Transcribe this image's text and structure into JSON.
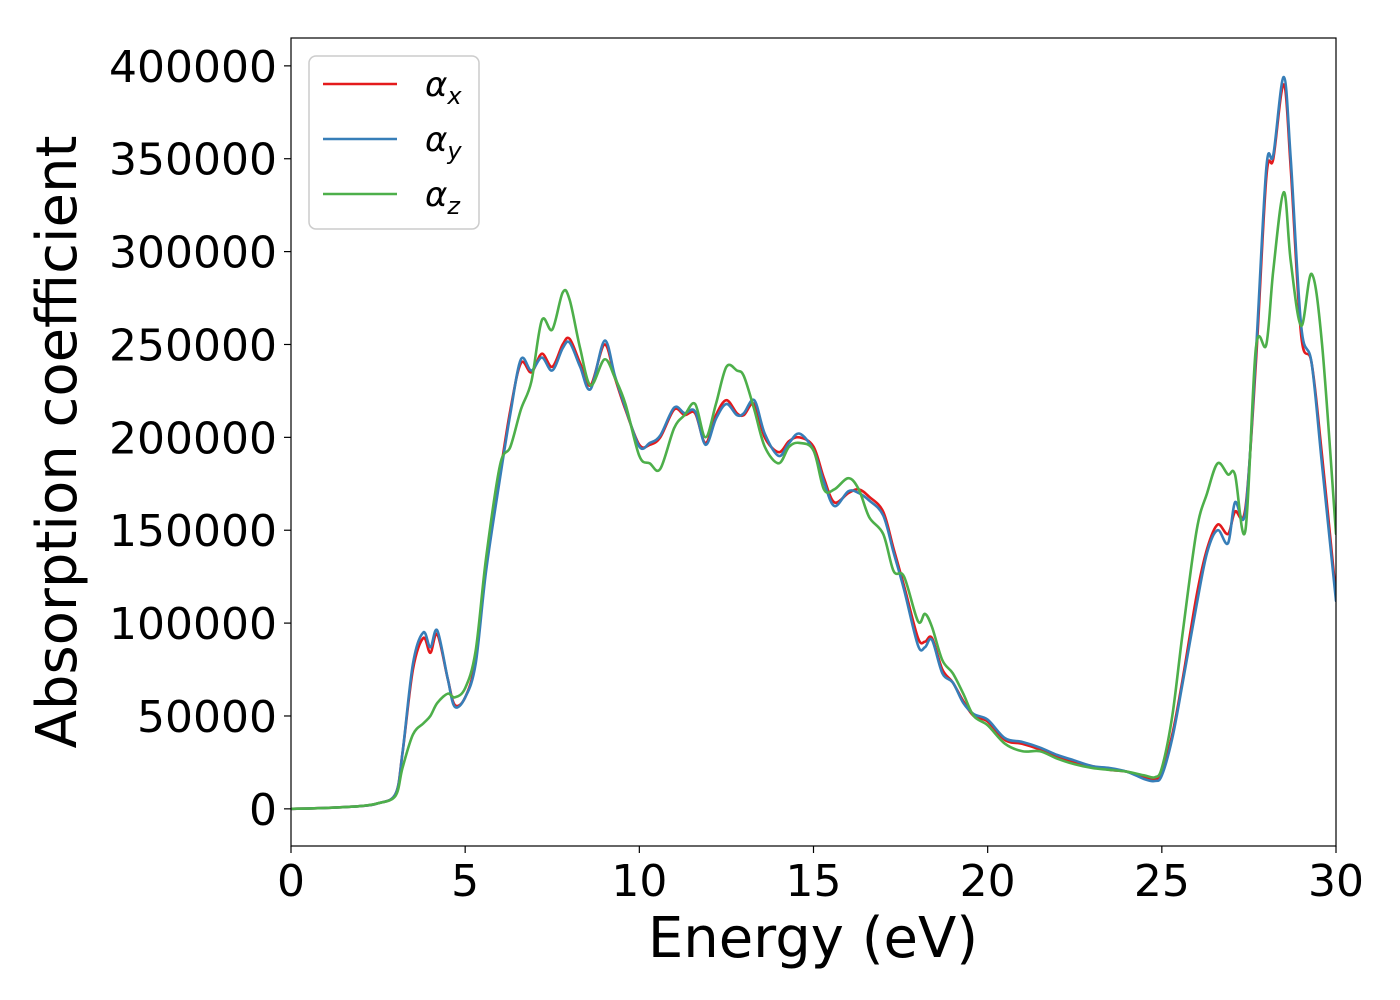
{
  "chart_data": {
    "type": "line",
    "title": "",
    "xlabel": "Energy (eV)",
    "ylabel": "Absorption coefficient",
    "xlim": [
      0,
      30
    ],
    "ylim": [
      -20000,
      415000
    ],
    "xticks": [
      0,
      5,
      10,
      15,
      20,
      25,
      30
    ],
    "yticks": [
      0,
      50000,
      100000,
      150000,
      200000,
      250000,
      300000,
      350000,
      400000
    ],
    "grid": false,
    "legend_position": "top-left",
    "colors": {
      "alpha_x": "#e41a1c",
      "alpha_y": "#377eb8",
      "alpha_z": "#4daf4a"
    },
    "series": [
      {
        "name": "α_x",
        "label_main": "α",
        "label_sub": "x",
        "color": "#e41a1c",
        "x": [
          0,
          1,
          2,
          2.5,
          3,
          3.2,
          3.5,
          3.8,
          4.0,
          4.2,
          4.5,
          4.7,
          5.0,
          5.3,
          5.6,
          6.0,
          6.3,
          6.6,
          6.9,
          7.2,
          7.5,
          7.8,
          8.0,
          8.3,
          8.6,
          9.0,
          9.3,
          9.6,
          10.0,
          10.3,
          10.6,
          11.0,
          11.3,
          11.6,
          11.9,
          12.2,
          12.5,
          12.8,
          13.0,
          13.3,
          13.6,
          14.0,
          14.3,
          14.6,
          15.0,
          15.3,
          15.6,
          16.0,
          16.3,
          16.6,
          17.0,
          17.3,
          17.6,
          18.0,
          18.2,
          18.4,
          18.7,
          19.0,
          19.3,
          19.6,
          20.0,
          20.5,
          21.0,
          21.5,
          22.0,
          22.5,
          23.0,
          23.5,
          24.0,
          24.5,
          24.8,
          25.0,
          25.3,
          25.6,
          26.0,
          26.3,
          26.6,
          26.9,
          27.1,
          27.4,
          27.7,
          28.0,
          28.2,
          28.5,
          28.7,
          29.0,
          29.3,
          29.6,
          30.0
        ],
        "values": [
          0,
          500,
          1500,
          3000,
          8000,
          30000,
          75000,
          92000,
          84000,
          94000,
          70000,
          56000,
          60000,
          80000,
          130000,
          180000,
          215000,
          240000,
          235000,
          245000,
          238000,
          250000,
          253000,
          240000,
          228000,
          250000,
          232000,
          215000,
          196000,
          196000,
          200000,
          215000,
          212000,
          213000,
          197000,
          212000,
          220000,
          213000,
          212000,
          218000,
          200000,
          192000,
          198000,
          200000,
          195000,
          178000,
          165000,
          170000,
          172000,
          168000,
          160000,
          140000,
          120000,
          92000,
          90000,
          92000,
          75000,
          68000,
          58000,
          50000,
          47000,
          37000,
          35000,
          32000,
          28000,
          25000,
          23000,
          21000,
          20000,
          17000,
          16000,
          20000,
          40000,
          70000,
          115000,
          140000,
          153000,
          148000,
          160000,
          162000,
          240000,
          340000,
          350000,
          390000,
          345000,
          255000,
          240000,
          190000,
          115000
        ]
      },
      {
        "name": "α_y",
        "label_main": "α",
        "label_sub": "y",
        "color": "#377eb8",
        "x": [
          0,
          1,
          2,
          2.5,
          3,
          3.2,
          3.5,
          3.8,
          4.0,
          4.2,
          4.5,
          4.7,
          5.0,
          5.3,
          5.6,
          6.0,
          6.3,
          6.6,
          6.9,
          7.2,
          7.5,
          7.8,
          8.0,
          8.3,
          8.6,
          9.0,
          9.3,
          9.6,
          10.0,
          10.3,
          10.6,
          11.0,
          11.3,
          11.6,
          11.9,
          12.2,
          12.5,
          12.8,
          13.0,
          13.3,
          13.6,
          14.0,
          14.3,
          14.6,
          15.0,
          15.3,
          15.6,
          16.0,
          16.3,
          16.6,
          17.0,
          17.3,
          17.6,
          18.0,
          18.2,
          18.4,
          18.7,
          19.0,
          19.3,
          19.6,
          20.0,
          20.5,
          21.0,
          21.5,
          22.0,
          22.5,
          23.0,
          23.5,
          24.0,
          24.5,
          24.8,
          25.0,
          25.3,
          25.6,
          26.0,
          26.3,
          26.6,
          26.9,
          27.1,
          27.4,
          27.7,
          28.0,
          28.2,
          28.5,
          28.7,
          29.0,
          29.3,
          29.6,
          30.0
        ],
        "values": [
          0,
          500,
          1500,
          3000,
          8000,
          30000,
          78000,
          95000,
          87000,
          96000,
          70000,
          55000,
          60000,
          78000,
          128000,
          178000,
          213000,
          242000,
          236000,
          243000,
          236000,
          248000,
          251000,
          238000,
          226000,
          252000,
          233000,
          216000,
          195000,
          197000,
          201000,
          216000,
          213000,
          214000,
          196000,
          210000,
          218000,
          212000,
          213000,
          220000,
          202000,
          190000,
          197000,
          202000,
          193000,
          176000,
          163000,
          171000,
          170000,
          166000,
          158000,
          138000,
          118000,
          88000,
          87000,
          91000,
          73000,
          68000,
          57000,
          51000,
          48000,
          38000,
          36000,
          33000,
          29000,
          26000,
          23000,
          22000,
          20000,
          16000,
          15000,
          18000,
          38000,
          68000,
          110000,
          138000,
          150000,
          143000,
          165000,
          160000,
          245000,
          345000,
          352000,
          394000,
          350000,
          260000,
          240000,
          185000,
          112000
        ]
      },
      {
        "name": "α_z",
        "label_main": "α",
        "label_sub": "z",
        "color": "#4daf4a",
        "x": [
          0,
          1,
          2,
          2.5,
          3,
          3.2,
          3.5,
          3.8,
          4.0,
          4.2,
          4.5,
          4.7,
          5.0,
          5.3,
          5.6,
          6.0,
          6.3,
          6.6,
          6.9,
          7.2,
          7.5,
          7.8,
          8.0,
          8.3,
          8.6,
          9.0,
          9.3,
          9.6,
          10.0,
          10.3,
          10.6,
          11.0,
          11.3,
          11.6,
          11.9,
          12.2,
          12.5,
          12.8,
          13.0,
          13.3,
          13.6,
          14.0,
          14.3,
          14.6,
          15.0,
          15.3,
          15.6,
          16.0,
          16.3,
          16.6,
          17.0,
          17.3,
          17.6,
          18.0,
          18.2,
          18.4,
          18.7,
          19.0,
          19.3,
          19.6,
          20.0,
          20.5,
          21.0,
          21.5,
          22.0,
          22.5,
          23.0,
          23.5,
          24.0,
          24.5,
          24.8,
          25.0,
          25.3,
          25.6,
          26.0,
          26.3,
          26.6,
          26.9,
          27.1,
          27.4,
          27.7,
          28.0,
          28.2,
          28.5,
          28.7,
          29.0,
          29.3,
          29.6,
          30.0
        ],
        "values": [
          0,
          500,
          1500,
          3000,
          7000,
          22000,
          40000,
          46000,
          50000,
          57000,
          62000,
          60000,
          65000,
          85000,
          135000,
          185000,
          195000,
          215000,
          230000,
          263000,
          258000,
          278000,
          274000,
          248000,
          228000,
          242000,
          232000,
          218000,
          190000,
          186000,
          183000,
          205000,
          212000,
          218000,
          200000,
          218000,
          238000,
          236000,
          233000,
          215000,
          195000,
          186000,
          195000,
          197000,
          193000,
          172000,
          172000,
          178000,
          172000,
          157000,
          148000,
          128000,
          125000,
          101000,
          105000,
          98000,
          80000,
          73000,
          62000,
          50000,
          45000,
          35000,
          31000,
          31000,
          27000,
          24000,
          22000,
          21000,
          20000,
          18000,
          17000,
          22000,
          50000,
          95000,
          150000,
          170000,
          186000,
          180000,
          180000,
          150000,
          248000,
          250000,
          290000,
          332000,
          295000,
          260000,
          288000,
          250000,
          148000
        ]
      }
    ]
  }
}
